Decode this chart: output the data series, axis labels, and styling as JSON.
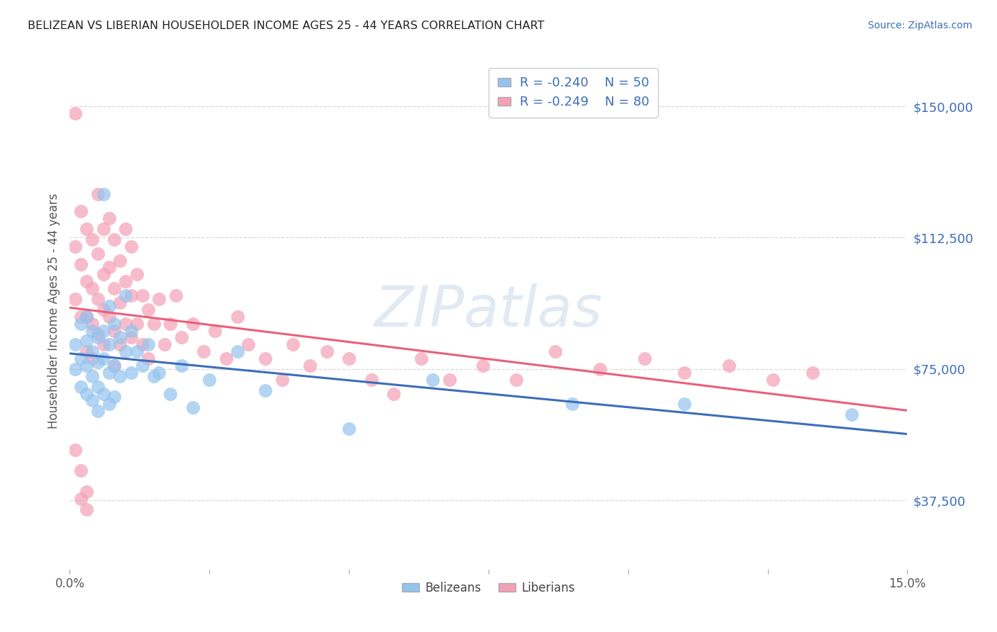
{
  "title": "BELIZEAN VS LIBERIAN HOUSEHOLDER INCOME AGES 25 - 44 YEARS CORRELATION CHART",
  "source": "Source: ZipAtlas.com",
  "ylabel": "Householder Income Ages 25 - 44 years",
  "xlim": [
    0.0,
    0.15
  ],
  "ylim": [
    18000,
    165000
  ],
  "yticks": [
    37500,
    75000,
    112500,
    150000
  ],
  "ytick_labels": [
    "$37,500",
    "$75,000",
    "$112,500",
    "$150,000"
  ],
  "xticks": [
    0.0,
    0.025,
    0.05,
    0.075,
    0.1,
    0.125,
    0.15
  ],
  "xtick_labels": [
    "0.0%",
    "",
    "",
    "",
    "",
    "",
    "15.0%"
  ],
  "background_color": "#ffffff",
  "grid_color": "#d8d8d8",
  "watermark": "ZIPatlas",
  "belizean_color": "#93c4ef",
  "liberian_color": "#f4a0b5",
  "belizean_line_color": "#3d6dba",
  "liberian_line_color": "#e8607a",
  "legend_R_belizean": "-0.240",
  "legend_N_belizean": "50",
  "legend_R_liberian": "-0.249",
  "legend_N_liberian": "80",
  "belizean_x": [
    0.001,
    0.001,
    0.002,
    0.002,
    0.002,
    0.003,
    0.003,
    0.003,
    0.003,
    0.004,
    0.004,
    0.004,
    0.004,
    0.005,
    0.005,
    0.005,
    0.005,
    0.006,
    0.006,
    0.006,
    0.006,
    0.007,
    0.007,
    0.007,
    0.007,
    0.008,
    0.008,
    0.008,
    0.009,
    0.009,
    0.01,
    0.01,
    0.011,
    0.011,
    0.012,
    0.013,
    0.014,
    0.015,
    0.016,
    0.018,
    0.02,
    0.022,
    0.025,
    0.03,
    0.035,
    0.05,
    0.065,
    0.09,
    0.11,
    0.14
  ],
  "belizean_y": [
    82000,
    75000,
    88000,
    78000,
    70000,
    90000,
    83000,
    76000,
    68000,
    86000,
    80000,
    73000,
    66000,
    84000,
    77000,
    70000,
    63000,
    125000,
    86000,
    78000,
    68000,
    93000,
    82000,
    74000,
    65000,
    88000,
    76000,
    67000,
    84000,
    73000,
    96000,
    80000,
    86000,
    74000,
    80000,
    76000,
    82000,
    73000,
    74000,
    68000,
    76000,
    64000,
    72000,
    80000,
    69000,
    58000,
    72000,
    65000,
    65000,
    62000
  ],
  "liberian_x": [
    0.001,
    0.001,
    0.001,
    0.002,
    0.002,
    0.002,
    0.003,
    0.003,
    0.003,
    0.003,
    0.004,
    0.004,
    0.004,
    0.004,
    0.005,
    0.005,
    0.005,
    0.005,
    0.006,
    0.006,
    0.006,
    0.006,
    0.007,
    0.007,
    0.007,
    0.008,
    0.008,
    0.008,
    0.008,
    0.009,
    0.009,
    0.009,
    0.01,
    0.01,
    0.01,
    0.011,
    0.011,
    0.011,
    0.012,
    0.012,
    0.013,
    0.013,
    0.014,
    0.014,
    0.015,
    0.016,
    0.017,
    0.018,
    0.019,
    0.02,
    0.022,
    0.024,
    0.026,
    0.028,
    0.03,
    0.032,
    0.035,
    0.038,
    0.04,
    0.043,
    0.046,
    0.05,
    0.054,
    0.058,
    0.063,
    0.068,
    0.074,
    0.08,
    0.087,
    0.095,
    0.103,
    0.11,
    0.118,
    0.126,
    0.133,
    0.001,
    0.002,
    0.003,
    0.002,
    0.003
  ],
  "liberian_y": [
    148000,
    110000,
    95000,
    120000,
    105000,
    90000,
    115000,
    100000,
    90000,
    80000,
    112000,
    98000,
    88000,
    78000,
    125000,
    108000,
    95000,
    85000,
    115000,
    102000,
    92000,
    82000,
    118000,
    104000,
    90000,
    112000,
    98000,
    86000,
    76000,
    106000,
    94000,
    82000,
    115000,
    100000,
    88000,
    110000,
    96000,
    84000,
    102000,
    88000,
    96000,
    82000,
    92000,
    78000,
    88000,
    95000,
    82000,
    88000,
    96000,
    84000,
    88000,
    80000,
    86000,
    78000,
    90000,
    82000,
    78000,
    72000,
    82000,
    76000,
    80000,
    78000,
    72000,
    68000,
    78000,
    72000,
    76000,
    72000,
    80000,
    75000,
    78000,
    74000,
    76000,
    72000,
    74000,
    52000,
    46000,
    40000,
    38000,
    35000
  ]
}
